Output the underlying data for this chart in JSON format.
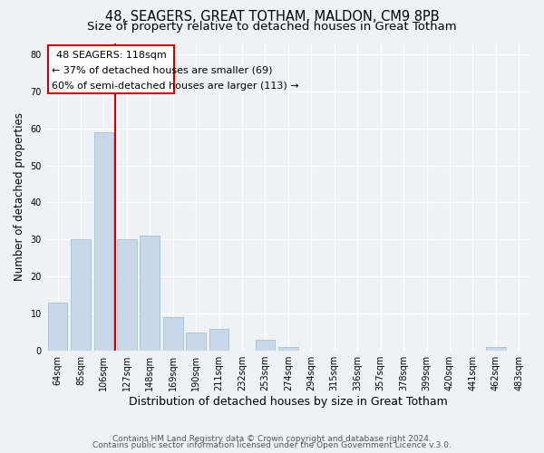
{
  "title1": "48, SEAGERS, GREAT TOTHAM, MALDON, CM9 8PB",
  "title2": "Size of property relative to detached houses in Great Totham",
  "xlabel": "Distribution of detached houses by size in Great Totham",
  "ylabel": "Number of detached properties",
  "bar_labels": [
    "64sqm",
    "85sqm",
    "106sqm",
    "127sqm",
    "148sqm",
    "169sqm",
    "190sqm",
    "211sqm",
    "232sqm",
    "253sqm",
    "274sqm",
    "294sqm",
    "315sqm",
    "336sqm",
    "357sqm",
    "378sqm",
    "399sqm",
    "420sqm",
    "441sqm",
    "462sqm",
    "483sqm"
  ],
  "bar_values": [
    13,
    30,
    59,
    30,
    31,
    9,
    5,
    6,
    0,
    3,
    1,
    0,
    0,
    0,
    0,
    0,
    0,
    0,
    0,
    1,
    0
  ],
  "bar_color": "#c8d8e8",
  "bar_edgecolor": "#a8bfd0",
  "vline_color": "#cc0000",
  "vline_x": 2.5,
  "annotation_line1": "48 SEAGERS: 118sqm",
  "annotation_line2": "← 37% of detached houses are smaller (69)",
  "annotation_line3": "60% of semi-detached houses are larger (113) →",
  "annotation_box_edgecolor": "#cc0000",
  "annotation_box_facecolor": "#ffffff",
  "ylim": [
    0,
    83
  ],
  "yticks": [
    0,
    10,
    20,
    30,
    40,
    50,
    60,
    70,
    80
  ],
  "background_color": "#eef2f6",
  "grid_color": "#ffffff",
  "footer1": "Contains HM Land Registry data © Crown copyright and database right 2024.",
  "footer2": "Contains public sector information licensed under the Open Government Licence v.3.0.",
  "title1_fontsize": 10.5,
  "title2_fontsize": 9.5,
  "xlabel_fontsize": 9,
  "ylabel_fontsize": 8.5,
  "tick_fontsize": 7,
  "annotation_fontsize": 8,
  "footer_fontsize": 6.5
}
